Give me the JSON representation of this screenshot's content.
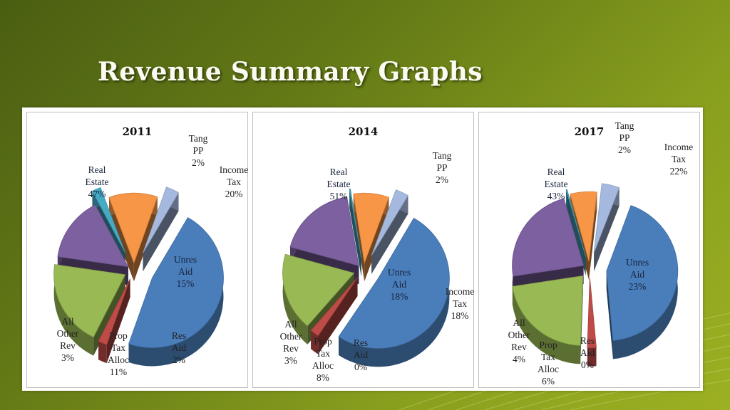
{
  "title": "Revenue Summary Graphs",
  "colors": {
    "real_estate": "#4a7ebb",
    "tang_pp": "#be4b48",
    "income_tax": "#98b954",
    "unres_aid": "#7d60a0",
    "res_aid": "#46aac5",
    "prop_tax_alloc": "#f79646",
    "all_other_rev": "#a5b9df"
  },
  "chart_data": [
    {
      "type": "pie",
      "title": "2011",
      "labels": [
        "Real Estate",
        "Tang PP",
        "Income Tax",
        "Unres Aid",
        "Res Aid",
        "Prop Tax Alloc",
        "All Other Rev"
      ],
      "values": [
        47,
        2,
        20,
        15,
        2,
        11,
        3
      ],
      "unit": "%"
    },
    {
      "type": "pie",
      "title": "2014",
      "labels": [
        "Real Estate",
        "Tang PP",
        "Income Tax",
        "Unres Aid",
        "Res Aid",
        "Prop Tax Alloc",
        "All Other Rev"
      ],
      "values": [
        51,
        2,
        18,
        18,
        0,
        8,
        3
      ],
      "unit": "%"
    },
    {
      "type": "pie",
      "title": "2017",
      "labels": [
        "Real Estate",
        "Tang PP",
        "Income Tax",
        "Unres Aid",
        "Res Aid",
        "Prop Tax Alloc",
        "All Other Rev"
      ],
      "values": [
        43,
        2,
        22,
        23,
        0,
        6,
        4
      ],
      "unit": "%"
    }
  ]
}
